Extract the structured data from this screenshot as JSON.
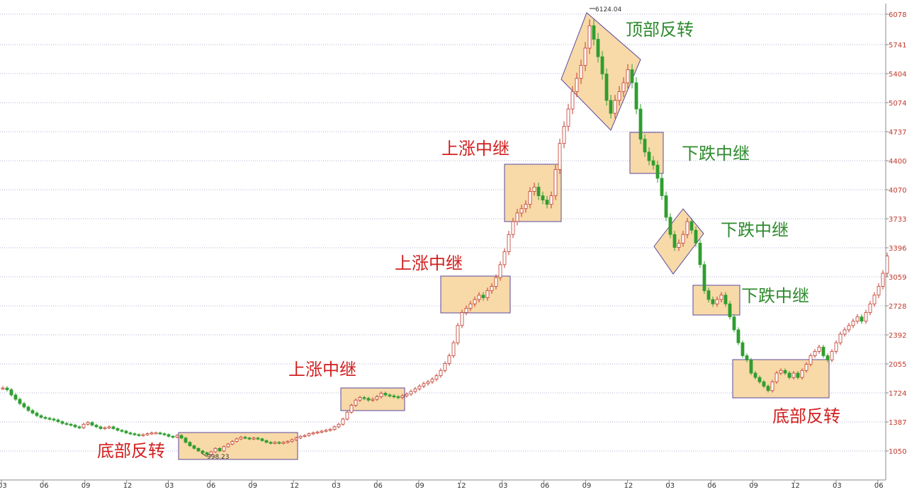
{
  "chart_data": {
    "type": "candlestick",
    "title": "",
    "xlabel": "",
    "ylabel": "",
    "y_ticks": [
      1050,
      1387,
      1724,
      2055,
      2392,
      2728,
      3059,
      3396,
      3733,
      4070,
      4400,
      4737,
      5074,
      5404,
      5741,
      6078
    ],
    "x_ticks": [
      "03",
      "06",
      "09",
      "12",
      "03",
      "06",
      "09",
      "12",
      "03",
      "06",
      "09",
      "12",
      "03",
      "06",
      "09",
      "12",
      "03",
      "06",
      "09",
      "12",
      "03",
      "06"
    ],
    "ylim": [
      1000,
      6150
    ],
    "grid": "horizontal-dotted",
    "peak_label": "6124.04",
    "trough_label": "998.23",
    "colors": {
      "up_body": "#ffffff",
      "up_outline": "#c0392b",
      "down_body": "#2f9e2f",
      "box_fill": "#f8d9a8",
      "box_stroke": "#5a4a9e",
      "label_red": "#d21f1f",
      "label_green": "#2e8b2e",
      "grid": "#9a9ac8"
    },
    "annotations": [
      {
        "text": "底部反转",
        "color": "red",
        "shape": "rect"
      },
      {
        "text": "上涨中继",
        "color": "red",
        "shape": "rect"
      },
      {
        "text": "上涨中继",
        "color": "red",
        "shape": "rect"
      },
      {
        "text": "上涨中继",
        "color": "red",
        "shape": "rect"
      },
      {
        "text": "顶部反转",
        "color": "green",
        "shape": "diamond"
      },
      {
        "text": "下跌中继",
        "color": "green",
        "shape": "rect"
      },
      {
        "text": "下跌中继",
        "color": "green",
        "shape": "diamond"
      },
      {
        "text": "下跌中继",
        "color": "green",
        "shape": "rect"
      },
      {
        "text": "底部反转",
        "color": "red",
        "shape": "rect"
      }
    ],
    "path_close": [
      [
        0,
        1780
      ],
      [
        6,
        1760
      ],
      [
        12,
        1700
      ],
      [
        18,
        1650
      ],
      [
        24,
        1600
      ],
      [
        30,
        1560
      ],
      [
        36,
        1520
      ],
      [
        42,
        1490
      ],
      [
        48,
        1460
      ],
      [
        54,
        1440
      ],
      [
        60,
        1430
      ],
      [
        66,
        1420
      ],
      [
        72,
        1410
      ],
      [
        78,
        1390
      ],
      [
        84,
        1370
      ],
      [
        90,
        1360
      ],
      [
        96,
        1350
      ],
      [
        102,
        1330
      ],
      [
        108,
        1320
      ],
      [
        114,
        1360
      ],
      [
        120,
        1380
      ],
      [
        126,
        1350
      ],
      [
        132,
        1330
      ],
      [
        138,
        1310
      ],
      [
        144,
        1320
      ],
      [
        150,
        1330
      ],
      [
        156,
        1310
      ],
      [
        162,
        1290
      ],
      [
        168,
        1280
      ],
      [
        174,
        1260
      ],
      [
        180,
        1250
      ],
      [
        186,
        1240
      ],
      [
        192,
        1230
      ],
      [
        198,
        1240
      ],
      [
        204,
        1250
      ],
      [
        210,
        1260
      ],
      [
        216,
        1260
      ],
      [
        222,
        1250
      ],
      [
        228,
        1240
      ],
      [
        234,
        1220
      ],
      [
        240,
        1210
      ],
      [
        246,
        1230
      ],
      [
        252,
        1200
      ],
      [
        258,
        1150
      ],
      [
        264,
        1110
      ],
      [
        270,
        1080
      ],
      [
        276,
        1050
      ],
      [
        282,
        1030
      ],
      [
        288,
        1010
      ],
      [
        294,
        1040
      ],
      [
        300,
        1080
      ],
      [
        306,
        1050
      ],
      [
        312,
        1100
      ],
      [
        318,
        1130
      ],
      [
        324,
        1160
      ],
      [
        330,
        1190
      ],
      [
        336,
        1210
      ],
      [
        342,
        1200
      ],
      [
        348,
        1190
      ],
      [
        354,
        1200
      ],
      [
        360,
        1190
      ],
      [
        366,
        1170
      ],
      [
        372,
        1150
      ],
      [
        378,
        1140
      ],
      [
        384,
        1150
      ],
      [
        390,
        1140
      ],
      [
        396,
        1150
      ],
      [
        402,
        1160
      ],
      [
        408,
        1180
      ],
      [
        414,
        1200
      ],
      [
        420,
        1220
      ],
      [
        426,
        1230
      ],
      [
        432,
        1250
      ],
      [
        438,
        1260
      ],
      [
        444,
        1270
      ],
      [
        450,
        1280
      ],
      [
        456,
        1290
      ],
      [
        462,
        1300
      ],
      [
        468,
        1330
      ],
      [
        474,
        1360
      ],
      [
        480,
        1420
      ],
      [
        486,
        1500
      ],
      [
        492,
        1580
      ],
      [
        498,
        1640
      ],
      [
        504,
        1670
      ],
      [
        510,
        1660
      ],
      [
        516,
        1640
      ],
      [
        522,
        1650
      ],
      [
        528,
        1680
      ],
      [
        534,
        1720
      ],
      [
        540,
        1700
      ],
      [
        546,
        1690
      ],
      [
        552,
        1680
      ],
      [
        558,
        1670
      ],
      [
        564,
        1690
      ],
      [
        570,
        1710
      ],
      [
        576,
        1740
      ],
      [
        582,
        1770
      ],
      [
        588,
        1800
      ],
      [
        594,
        1830
      ],
      [
        600,
        1850
      ],
      [
        606,
        1880
      ],
      [
        612,
        1920
      ],
      [
        618,
        1980
      ],
      [
        624,
        2060
      ],
      [
        630,
        2150
      ],
      [
        636,
        2300
      ],
      [
        642,
        2500
      ],
      [
        648,
        2650
      ],
      [
        654,
        2700
      ],
      [
        660,
        2750
      ],
      [
        666,
        2800
      ],
      [
        672,
        2850
      ],
      [
        678,
        2820
      ],
      [
        684,
        2900
      ],
      [
        690,
        2950
      ],
      [
        696,
        3050
      ],
      [
        702,
        3200
      ],
      [
        708,
        3350
      ],
      [
        714,
        3550
      ],
      [
        720,
        3700
      ],
      [
        726,
        3800
      ],
      [
        732,
        3850
      ],
      [
        738,
        3900
      ],
      [
        744,
        4050
      ],
      [
        750,
        4100
      ],
      [
        756,
        4000
      ],
      [
        762,
        3950
      ],
      [
        768,
        3900
      ],
      [
        774,
        4000
      ],
      [
        780,
        4300
      ],
      [
        786,
        4600
      ],
      [
        792,
        4800
      ],
      [
        798,
        5000
      ],
      [
        804,
        5200
      ],
      [
        810,
        5350
      ],
      [
        816,
        5500
      ],
      [
        822,
        5700
      ],
      [
        828,
        5950
      ],
      [
        834,
        5800
      ],
      [
        840,
        5600
      ],
      [
        846,
        5400
      ],
      [
        852,
        5100
      ],
      [
        858,
        4950
      ],
      [
        864,
        5100
      ],
      [
        870,
        5200
      ],
      [
        876,
        5300
      ],
      [
        882,
        5450
      ],
      [
        888,
        5300
      ],
      [
        894,
        5000
      ],
      [
        900,
        4650
      ],
      [
        906,
        4500
      ],
      [
        912,
        4400
      ],
      [
        918,
        4350
      ],
      [
        924,
        4200
      ],
      [
        930,
        4000
      ],
      [
        936,
        3750
      ],
      [
        942,
        3550
      ],
      [
        948,
        3400
      ],
      [
        954,
        3450
      ],
      [
        960,
        3550
      ],
      [
        966,
        3700
      ],
      [
        972,
        3600
      ],
      [
        978,
        3450
      ],
      [
        984,
        3200
      ],
      [
        990,
        2900
      ],
      [
        996,
        2800
      ],
      [
        1002,
        2750
      ],
      [
        1008,
        2800
      ],
      [
        1014,
        2850
      ],
      [
        1020,
        2750
      ],
      [
        1026,
        2600
      ],
      [
        1032,
        2450
      ],
      [
        1038,
        2300
      ],
      [
        1044,
        2150
      ],
      [
        1050,
        2100
      ],
      [
        1056,
        1950
      ],
      [
        1062,
        1900
      ],
      [
        1068,
        1850
      ],
      [
        1074,
        1800
      ],
      [
        1080,
        1750
      ],
      [
        1086,
        1850
      ],
      [
        1092,
        1950
      ],
      [
        1098,
        1980
      ],
      [
        1104,
        1950
      ],
      [
        1110,
        1900
      ],
      [
        1116,
        1950
      ],
      [
        1122,
        1900
      ],
      [
        1128,
        1980
      ],
      [
        1134,
        2050
      ],
      [
        1140,
        2150
      ],
      [
        1146,
        2200
      ],
      [
        1152,
        2250
      ],
      [
        1158,
        2150
      ],
      [
        1164,
        2100
      ],
      [
        1170,
        2200
      ],
      [
        1176,
        2300
      ],
      [
        1182,
        2400
      ],
      [
        1188,
        2450
      ],
      [
        1194,
        2500
      ],
      [
        1200,
        2550
      ],
      [
        1206,
        2600
      ],
      [
        1212,
        2550
      ],
      [
        1218,
        2650
      ],
      [
        1224,
        2750
      ],
      [
        1230,
        2850
      ],
      [
        1236,
        2950
      ],
      [
        1242,
        3100
      ],
      [
        1248,
        3300
      ]
    ]
  }
}
